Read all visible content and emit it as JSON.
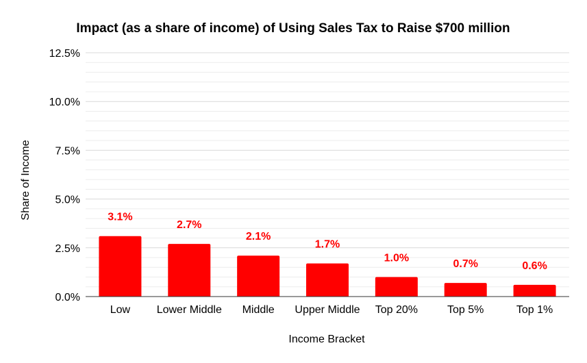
{
  "chart_data": {
    "type": "bar",
    "title": "Impact (as a share of income) of Using Sales Tax to Raise $700 million",
    "xlabel": "Income Bracket",
    "ylabel": "Share of Income",
    "categories": [
      "Low",
      "Lower Middle",
      "Middle",
      "Upper Middle",
      "Top 20%",
      "Top 5%",
      "Top 1%"
    ],
    "values": [
      3.1,
      2.7,
      2.1,
      1.7,
      1.0,
      0.7,
      0.6
    ],
    "data_labels": [
      "3.1%",
      "2.7%",
      "2.1%",
      "1.7%",
      "1.0%",
      "0.7%",
      "0.6%"
    ],
    "ylim": [
      0,
      12.5
    ],
    "yticks": [
      0,
      2.5,
      5,
      7.5,
      10,
      12.5
    ],
    "ytick_labels": [
      "0.0%",
      "2.5%",
      "5.0%",
      "7.5%",
      "10.0%",
      "12.5%"
    ],
    "minor_grid_step": 0.5,
    "grid": true,
    "bar_color": "#ff0000",
    "label_color": "#ff0000",
    "gridline_color": "#d9d9d9",
    "minor_gridline_color": "#ececec"
  }
}
